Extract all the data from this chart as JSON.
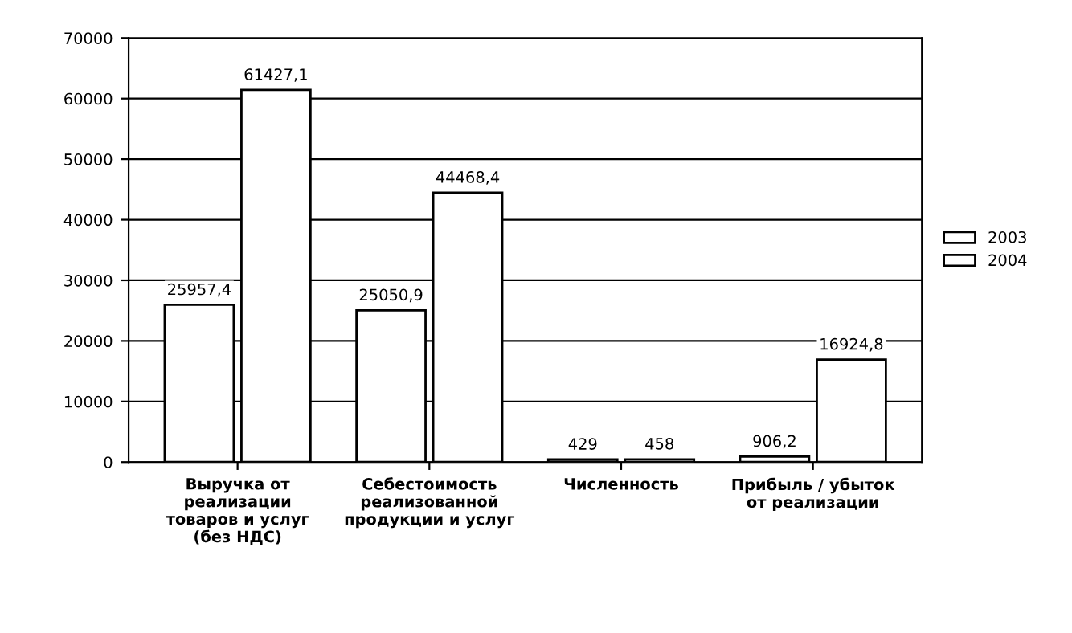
{
  "chart_data": {
    "type": "bar",
    "categories": [
      "Выручка от\nреализации\nтоваров и услуг\n(без НДС)",
      "Себестоимость\nреализованной\nпродукции и услуг",
      "Численность",
      "Прибыль / убыток\nот реализации"
    ],
    "series": [
      {
        "name": "2003",
        "color": "#ffffff",
        "values": [
          25957.4,
          25050.9,
          429,
          906.2
        ],
        "value_labels": [
          "25957,4",
          "25050,9",
          "429",
          "906,2"
        ]
      },
      {
        "name": "2004",
        "color": "#ffffff",
        "values": [
          61427.1,
          44468.4,
          458,
          16924.8
        ],
        "value_labels": [
          "61427,1",
          "44468,4",
          "458",
          "16924,8"
        ]
      }
    ],
    "ylim": [
      0,
      70000
    ],
    "yticks": [
      0,
      10000,
      20000,
      30000,
      40000,
      50000,
      60000,
      70000
    ],
    "grid": "y",
    "legend": "right"
  }
}
